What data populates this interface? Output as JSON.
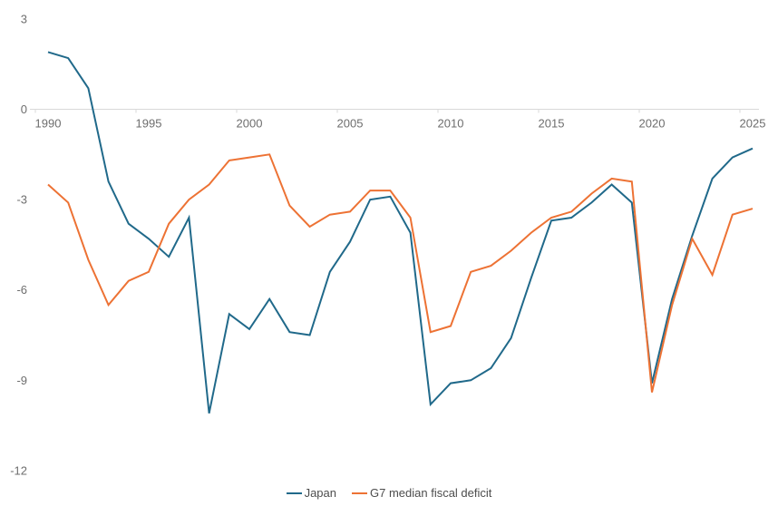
{
  "chart_data": {
    "type": "line",
    "title": "",
    "xlabel": "",
    "ylabel": "",
    "x": [
      1990,
      1991,
      1992,
      1993,
      1994,
      1995,
      1996,
      1997,
      1998,
      1999,
      2000,
      2001,
      2002,
      2003,
      2004,
      2005,
      2006,
      2007,
      2008,
      2009,
      2010,
      2011,
      2012,
      2013,
      2014,
      2015,
      2016,
      2017,
      2018,
      2019,
      2020,
      2021,
      2022,
      2023,
      2024,
      2025
    ],
    "series": [
      {
        "name": "Japan",
        "color": "#20698A",
        "values": [
          1.9,
          1.7,
          0.7,
          -2.4,
          -3.8,
          -4.3,
          -4.9,
          -3.6,
          -10.1,
          -6.8,
          -7.3,
          -6.3,
          -7.4,
          -7.5,
          -5.4,
          -4.4,
          -3.0,
          -2.9,
          -4.1,
          -9.8,
          -9.1,
          -9.0,
          -8.6,
          -7.6,
          -5.6,
          -3.7,
          -3.6,
          -3.1,
          -2.5,
          -3.1,
          -9.1,
          -6.3,
          -4.2,
          -2.3,
          -1.6,
          -1.3
        ]
      },
      {
        "name": "G7 median fiscal deficit",
        "color": "#ED7234",
        "values": [
          -2.5,
          -3.1,
          -5.0,
          -6.5,
          -5.7,
          -5.4,
          -3.8,
          -3.0,
          -2.5,
          -1.7,
          -1.6,
          -1.5,
          -3.2,
          -3.9,
          -3.5,
          -3.4,
          -2.7,
          -2.7,
          -3.6,
          -7.4,
          -7.2,
          -5.4,
          -5.2,
          -4.7,
          -4.1,
          -3.6,
          -3.4,
          -2.8,
          -2.3,
          -2.4,
          -9.4,
          -6.5,
          -4.3,
          -5.5,
          -3.5,
          -3.3
        ]
      }
    ],
    "y_ticks": [
      3,
      0,
      -3,
      -6,
      -9,
      -12
    ],
    "x_ticks": [
      1990,
      1995,
      2000,
      2005,
      2010,
      2015,
      2020,
      2025
    ],
    "ylim": [
      -12,
      3
    ],
    "xlim": [
      1990,
      2025
    ],
    "grid": false,
    "legend_position": "bottom"
  },
  "legend": {
    "items": [
      {
        "label": "Japan",
        "color": "#20698A"
      },
      {
        "label": "G7 median fiscal deficit",
        "color": "#ED7234"
      }
    ]
  },
  "axis": {
    "line_color": "#D9D9D9",
    "tick_color": "#D9D9D9",
    "label_color": "#6E6E6E"
  }
}
